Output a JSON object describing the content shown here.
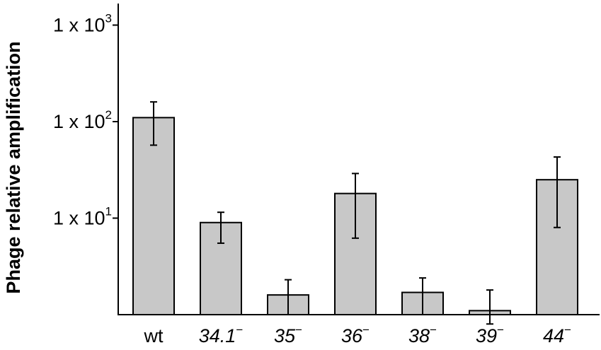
{
  "chart_data": {
    "type": "bar",
    "ylabel": "Phage relative amplification",
    "xlabel": "",
    "yscale": "log",
    "ylim": [
      1,
      1000
    ],
    "yticks": [
      {
        "value": 10,
        "base": "1 x 10",
        "exp": "1"
      },
      {
        "value": 100,
        "base": "1 x 10",
        "exp": "2"
      },
      {
        "value": 1000,
        "base": "1 x 10",
        "exp": "3"
      }
    ],
    "categories": [
      {
        "label": "wt",
        "sup": "",
        "italic": false
      },
      {
        "label": "34.1",
        "sup": "−",
        "italic": true
      },
      {
        "label": "35",
        "sup": "−",
        "italic": true
      },
      {
        "label": "36",
        "sup": "−",
        "italic": true
      },
      {
        "label": "38",
        "sup": "−",
        "italic": true
      },
      {
        "label": "39",
        "sup": "−",
        "italic": true
      },
      {
        "label": "44",
        "sup": "−",
        "italic": true
      }
    ],
    "values": [
      110,
      9,
      1.6,
      18,
      1.7,
      1.1,
      25
    ],
    "error_low": [
      57,
      5.5,
      1.0,
      6.2,
      1.0,
      0.8,
      8
    ],
    "error_high": [
      160,
      11.5,
      2.3,
      29,
      2.4,
      1.8,
      43
    ],
    "bar_color": "#c8c8c8",
    "edge_color": "#000000",
    "grid": false
  }
}
